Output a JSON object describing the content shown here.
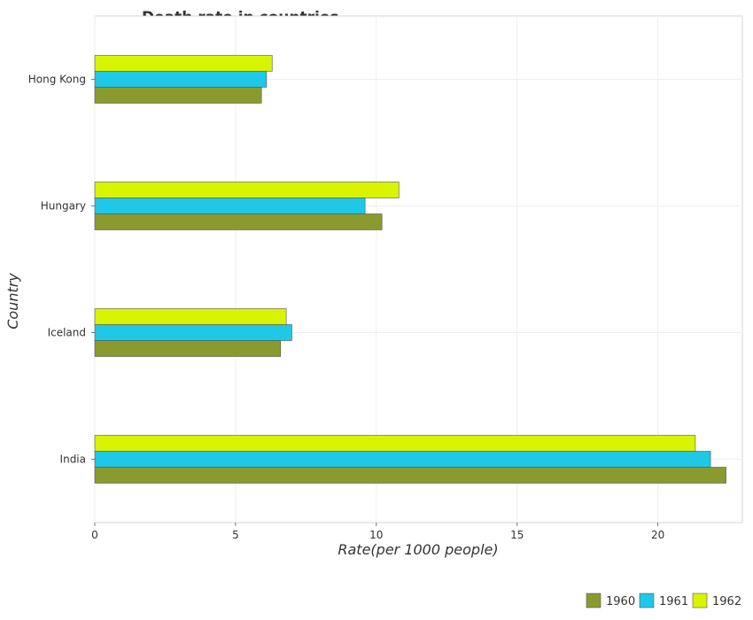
{
  "chart_data": {
    "type": "bar",
    "orientation": "horizontal",
    "title": "Death rate in countries",
    "xlabel": "Rate(per 1000 people)",
    "ylabel": "Country",
    "xlim": [
      0,
      23
    ],
    "xticks": [
      0,
      5,
      10,
      15,
      20
    ],
    "grid": true,
    "legend_position": "bottom-right",
    "categories": [
      "Hong Kong",
      "Hungary",
      "Iceland",
      "India"
    ],
    "series": [
      {
        "name": "1960",
        "color": "#8b9a2e",
        "values": [
          5.92,
          10.2,
          6.6,
          22.42
        ]
      },
      {
        "name": "1961",
        "color": "#1ec8e6",
        "values": [
          6.1,
          9.6,
          7.0,
          21.87
        ]
      },
      {
        "name": "1962",
        "color": "#d8f400",
        "values": [
          6.3,
          10.8,
          6.8,
          21.33
        ]
      }
    ]
  }
}
